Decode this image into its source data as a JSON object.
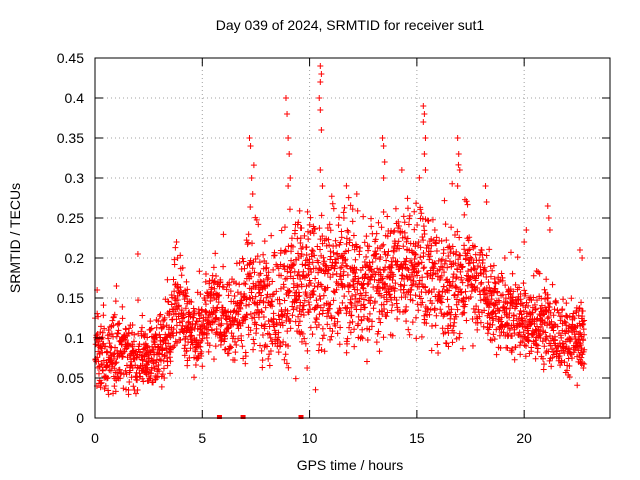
{
  "chart_data": {
    "type": "scatter",
    "title": "Day 039 of 2024, SRMTID for receiver sut1",
    "xlabel": "GPS time / hours",
    "ylabel": "SRMTID / TECUs",
    "xlim": [
      0,
      24
    ],
    "ylim": [
      0,
      0.45
    ],
    "xticks": [
      0,
      5,
      10,
      15,
      20
    ],
    "xtick_labels": [
      "0",
      "5",
      "10",
      "15",
      "20"
    ],
    "yticks": [
      0,
      0.05,
      0.1,
      0.15,
      0.2,
      0.25,
      0.3,
      0.35,
      0.4,
      0.45
    ],
    "ytick_labels": [
      "0",
      "0.05",
      "0.1",
      "0.15",
      "0.2",
      "0.25",
      "0.3",
      "0.35",
      "0.4",
      "0.45"
    ],
    "grid": true,
    "marker": "+",
    "color": "#ff0000",
    "zero_markers_hours": [
      5.8,
      6.9,
      9.6
    ],
    "envelope": {
      "hours": [
        0,
        0.5,
        1,
        1.5,
        2,
        2.5,
        3,
        3.5,
        3.7,
        4,
        4.5,
        5,
        5.5,
        6,
        6.5,
        7,
        7.5,
        8,
        8.5,
        9,
        9.5,
        10,
        10.5,
        11,
        11.5,
        12,
        12.5,
        13,
        13.5,
        14,
        14.5,
        15,
        15.5,
        16,
        16.5,
        17,
        17.5,
        18,
        18.5,
        19,
        19.5,
        20,
        20.5,
        21,
        21.5,
        22,
        22.5,
        22.8
      ],
      "median": [
        0.08,
        0.075,
        0.08,
        0.075,
        0.07,
        0.075,
        0.08,
        0.1,
        0.14,
        0.14,
        0.1,
        0.11,
        0.15,
        0.12,
        0.13,
        0.15,
        0.16,
        0.14,
        0.15,
        0.16,
        0.17,
        0.17,
        0.16,
        0.17,
        0.18,
        0.17,
        0.16,
        0.17,
        0.17,
        0.19,
        0.19,
        0.19,
        0.17,
        0.16,
        0.16,
        0.17,
        0.18,
        0.17,
        0.14,
        0.13,
        0.13,
        0.12,
        0.12,
        0.12,
        0.11,
        0.1,
        0.1,
        0.1
      ],
      "spread": [
        0.03,
        0.03,
        0.03,
        0.03,
        0.025,
        0.025,
        0.03,
        0.03,
        0.035,
        0.04,
        0.03,
        0.03,
        0.04,
        0.035,
        0.04,
        0.05,
        0.05,
        0.05,
        0.05,
        0.06,
        0.06,
        0.06,
        0.05,
        0.05,
        0.05,
        0.05,
        0.05,
        0.05,
        0.05,
        0.05,
        0.05,
        0.05,
        0.05,
        0.05,
        0.05,
        0.05,
        0.045,
        0.04,
        0.035,
        0.035,
        0.035,
        0.035,
        0.035,
        0.035,
        0.03,
        0.03,
        0.03,
        0.03
      ]
    },
    "spikes": [
      {
        "x": 7.2,
        "y": 0.35
      },
      {
        "x": 7.25,
        "y": 0.34
      },
      {
        "x": 7.3,
        "y": 0.3
      },
      {
        "x": 7.35,
        "y": 0.28
      },
      {
        "x": 8.9,
        "y": 0.4
      },
      {
        "x": 8.95,
        "y": 0.38
      },
      {
        "x": 9.0,
        "y": 0.35
      },
      {
        "x": 9.05,
        "y": 0.33
      },
      {
        "x": 9.1,
        "y": 0.3
      },
      {
        "x": 9.0,
        "y": 0.29
      },
      {
        "x": 10.5,
        "y": 0.44
      },
      {
        "x": 10.55,
        "y": 0.43
      },
      {
        "x": 10.5,
        "y": 0.42
      },
      {
        "x": 10.45,
        "y": 0.4
      },
      {
        "x": 10.5,
        "y": 0.385
      },
      {
        "x": 10.55,
        "y": 0.36
      },
      {
        "x": 10.5,
        "y": 0.31
      },
      {
        "x": 10.6,
        "y": 0.29
      },
      {
        "x": 13.4,
        "y": 0.35
      },
      {
        "x": 13.45,
        "y": 0.34
      },
      {
        "x": 13.5,
        "y": 0.32
      },
      {
        "x": 13.45,
        "y": 0.3
      },
      {
        "x": 15.3,
        "y": 0.39
      },
      {
        "x": 15.35,
        "y": 0.38
      },
      {
        "x": 15.3,
        "y": 0.37
      },
      {
        "x": 15.4,
        "y": 0.35
      },
      {
        "x": 15.35,
        "y": 0.33
      },
      {
        "x": 15.4,
        "y": 0.31
      },
      {
        "x": 16.9,
        "y": 0.35
      },
      {
        "x": 16.95,
        "y": 0.33
      },
      {
        "x": 17.0,
        "y": 0.31
      },
      {
        "x": 16.9,
        "y": 0.29
      },
      {
        "x": 18.2,
        "y": 0.29
      },
      {
        "x": 18.25,
        "y": 0.27
      },
      {
        "x": 20.1,
        "y": 0.235
      },
      {
        "x": 20.0,
        "y": 0.22
      },
      {
        "x": 21.1,
        "y": 0.265
      },
      {
        "x": 21.15,
        "y": 0.25
      },
      {
        "x": 21.2,
        "y": 0.235
      },
      {
        "x": 22.6,
        "y": 0.21
      },
      {
        "x": 22.7,
        "y": 0.2
      },
      {
        "x": 19.1,
        "y": 0.2
      },
      {
        "x": 3.8,
        "y": 0.22
      },
      {
        "x": 3.85,
        "y": 0.2
      },
      {
        "x": 0.1,
        "y": 0.16
      },
      {
        "x": 2.0,
        "y": 0.205
      },
      {
        "x": 1.0,
        "y": 0.165
      },
      {
        "x": 14.3,
        "y": 0.31
      },
      {
        "x": 12.2,
        "y": 0.28
      },
      {
        "x": 11.6,
        "y": 0.25
      }
    ]
  }
}
